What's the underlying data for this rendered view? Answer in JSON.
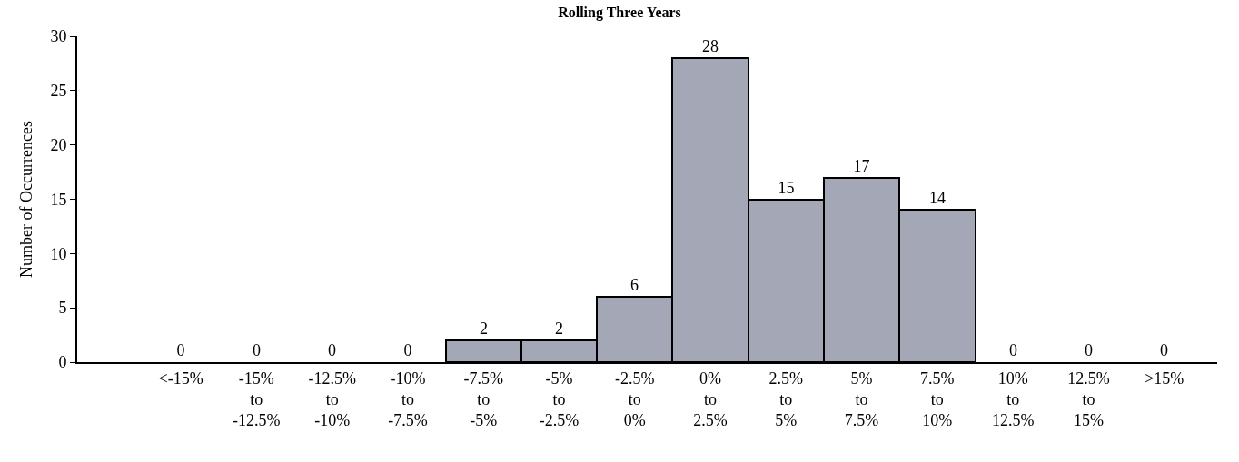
{
  "chart_data": {
    "type": "bar",
    "title": "Rolling Three Years",
    "ylabel": "Number of Occurrences",
    "categories": [
      "<-15%",
      "-15%\nto\n-12.5%",
      "-12.5%\nto\n-10%",
      "-10%\nto\n-7.5%",
      "-7.5%\nto\n-5%",
      "-5%\nto\n-2.5%",
      "-2.5%\nto\n0%",
      "0%\nto\n2.5%",
      "2.5%\nto\n5%",
      "5%\nto\n7.5%",
      "7.5%\nto\n10%",
      "10%\nto\n12.5%",
      "12.5%\nto\n15%",
      ">15%"
    ],
    "values": [
      0,
      0,
      0,
      0,
      2,
      2,
      6,
      28,
      15,
      17,
      14,
      0,
      0,
      0
    ],
    "color": "#a4a8b6",
    "ylim": [
      0,
      30
    ],
    "yticks": [
      0,
      5,
      10,
      15,
      20,
      25,
      30
    ],
    "data_labels": true
  }
}
